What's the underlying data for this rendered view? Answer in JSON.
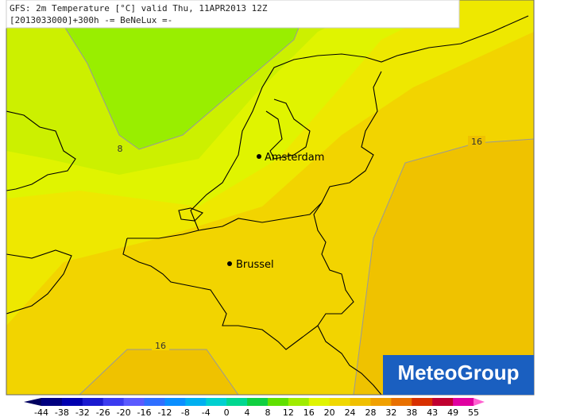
{
  "header": {
    "line1": "GFS: 2m Temperature [°C] valid Thu, 11APR2013 12Z",
    "line2": "[2013033000]+300h -= BeNeLux =-"
  },
  "contour_labels": [
    "8",
    "16",
    "16"
  ],
  "cities": [
    {
      "label": "Amsterdam"
    },
    {
      "label": "Brussel"
    }
  ],
  "logo": "MeteoGroup",
  "legend": {
    "labels": [
      "-44",
      "-38",
      "-32",
      "-26",
      "-20",
      "-16",
      "-12",
      "-8",
      "-4",
      "0",
      "4",
      "8",
      "12",
      "16",
      "20",
      "24",
      "28",
      "32",
      "38",
      "43",
      "49",
      "55"
    ],
    "colors": [
      "#000060",
      "#000080",
      "#0000b0",
      "#1a1ad0",
      "#3b3bf0",
      "#5a5aff",
      "#2f6fff",
      "#0a8fff",
      "#00b0f0",
      "#00d0d0",
      "#00d890",
      "#10d040",
      "#60e000",
      "#a0ec00",
      "#e0f400",
      "#f0d800",
      "#f0c000",
      "#f0a000",
      "#e87000",
      "#d83000",
      "#c00030",
      "#e000a0",
      "#ff60d0"
    ]
  }
}
